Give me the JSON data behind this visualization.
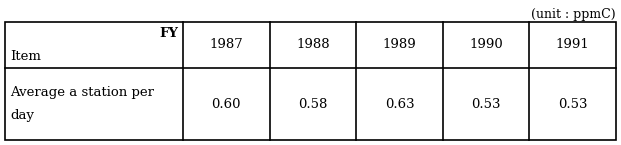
{
  "unit_label": "(unit : ppmC)",
  "header_left_top": "FY",
  "header_left_bottom": "Item",
  "years": [
    "1987",
    "1988",
    "1989",
    "1990",
    "1991"
  ],
  "row_label_line1": "Average a station per",
  "row_label_line2": "day",
  "values": [
    "0.60",
    "0.58",
    "0.63",
    "0.53",
    "0.53"
  ],
  "background_color": "#ffffff",
  "line_color": "#000000",
  "font_size": 9.5,
  "unit_font_size": 9
}
